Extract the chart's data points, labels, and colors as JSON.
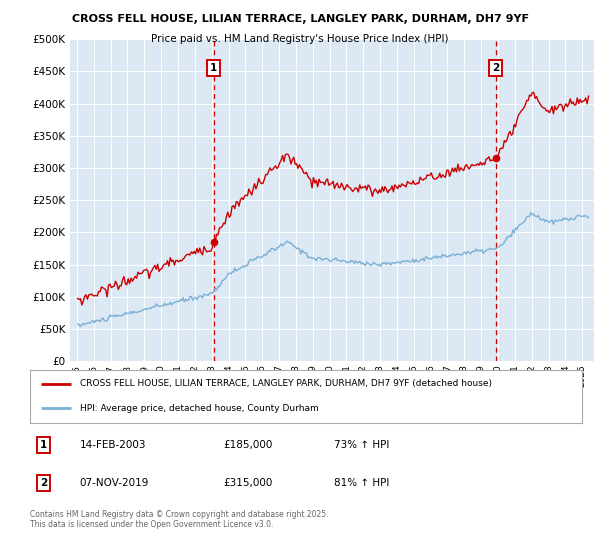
{
  "title1": "CROSS FELL HOUSE, LILIAN TERRACE, LANGLEY PARK, DURHAM, DH7 9YF",
  "title2": "Price paid vs. HM Land Registry's House Price Index (HPI)",
  "bg_color": "#dce9f5",
  "red_color": "#cc0000",
  "blue_color": "#7ab0d4",
  "ylim": [
    0,
    500000
  ],
  "yticks": [
    0,
    50000,
    100000,
    150000,
    200000,
    250000,
    300000,
    350000,
    400000,
    450000,
    500000
  ],
  "ytick_labels": [
    "£0",
    "£50K",
    "£100K",
    "£150K",
    "£200K",
    "£250K",
    "£300K",
    "£350K",
    "£400K",
    "£450K",
    "£500K"
  ],
  "marker1_value": 185000,
  "marker1_text": "14-FEB-2003",
  "marker1_price": "£185,000",
  "marker1_hpi": "73% ↑ HPI",
  "marker2_value": 315000,
  "marker2_text": "07-NOV-2019",
  "marker2_price": "£315,000",
  "marker2_hpi": "81% ↑ HPI",
  "legend_red": "CROSS FELL HOUSE, LILIAN TERRACE, LANGLEY PARK, DURHAM, DH7 9YF (detached house)",
  "legend_blue": "HPI: Average price, detached house, County Durham",
  "footer": "Contains HM Land Registry data © Crown copyright and database right 2025.\nThis data is licensed under the Open Government Licence v3.0."
}
